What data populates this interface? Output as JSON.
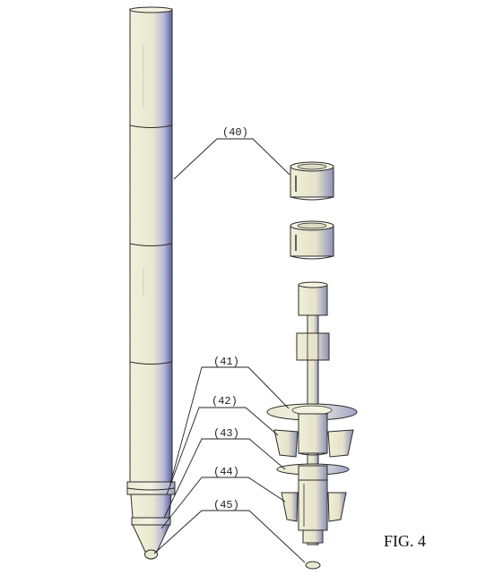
{
  "figure_caption": "FIG. 4",
  "labels": {
    "l40": "(40)",
    "l41": "(41)",
    "l42": "(42)",
    "l43": "(43)",
    "l44": "(44)",
    "l45": "(45)"
  },
  "colors": {
    "body_light": "#f2f1dc",
    "body_mid": "#e2e0c8",
    "body_shadow": "#7a7fb8",
    "body_dark": "#4a4f8a"
  }
}
